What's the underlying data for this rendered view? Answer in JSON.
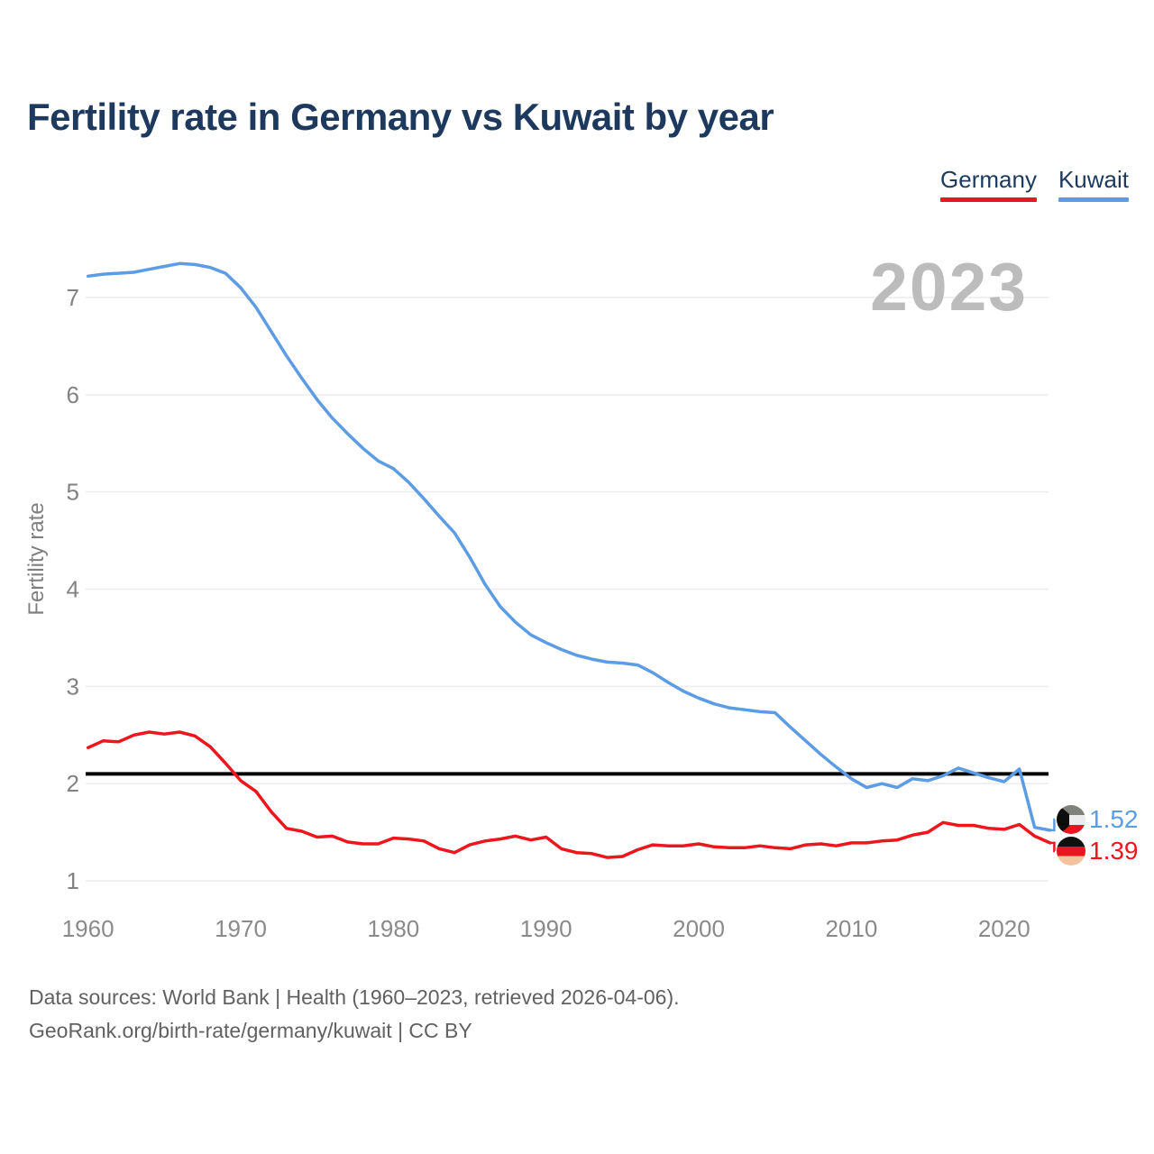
{
  "title": "Fertility rate in Germany vs Kuwait by year",
  "legend": {
    "items": [
      {
        "label": "Germany",
        "color": "#ee161d"
      },
      {
        "label": "Kuwait",
        "color": "#5b9ce4"
      }
    ]
  },
  "year_badge": "2023",
  "footer": {
    "line1": "Data sources: World Bank | Health (1960–2023, retrieved 2026-04-06).",
    "line2": "GeoRank.org/birth-rate/germany/kuwait | CC BY"
  },
  "chart_data": {
    "type": "line",
    "title": "Fertility rate in Germany vs Kuwait by year",
    "xlabel": "",
    "ylabel": "Fertility rate",
    "xlim": [
      1960,
      2023
    ],
    "ylim": [
      1,
      7.56
    ],
    "yticks": [
      1,
      2,
      3,
      4,
      5,
      6,
      7
    ],
    "xticks": [
      1960,
      1970,
      1980,
      1990,
      2000,
      2010,
      2020
    ],
    "grid": "horizontal",
    "legend_position": "top-right",
    "reference_line": {
      "value": 2.1,
      "color": "#000000"
    },
    "x": [
      1960,
      1961,
      1962,
      1963,
      1964,
      1965,
      1966,
      1967,
      1968,
      1969,
      1970,
      1971,
      1972,
      1973,
      1974,
      1975,
      1976,
      1977,
      1978,
      1979,
      1980,
      1981,
      1982,
      1983,
      1984,
      1985,
      1986,
      1987,
      1988,
      1989,
      1990,
      1991,
      1992,
      1993,
      1994,
      1995,
      1996,
      1997,
      1998,
      1999,
      2000,
      2001,
      2002,
      2003,
      2004,
      2005,
      2006,
      2007,
      2008,
      2009,
      2010,
      2011,
      2012,
      2013,
      2014,
      2015,
      2016,
      2017,
      2018,
      2019,
      2020,
      2021,
      2022,
      2023
    ],
    "series": [
      {
        "name": "Germany",
        "color": "#ee161d",
        "end_label": "1.39",
        "flag": "germany",
        "values": [
          2.37,
          2.44,
          2.43,
          2.5,
          2.53,
          2.51,
          2.53,
          2.49,
          2.38,
          2.21,
          2.03,
          1.92,
          1.71,
          1.54,
          1.51,
          1.45,
          1.46,
          1.4,
          1.38,
          1.38,
          1.44,
          1.43,
          1.41,
          1.33,
          1.29,
          1.37,
          1.41,
          1.43,
          1.46,
          1.42,
          1.45,
          1.33,
          1.29,
          1.28,
          1.24,
          1.25,
          1.32,
          1.37,
          1.36,
          1.36,
          1.38,
          1.35,
          1.34,
          1.34,
          1.36,
          1.34,
          1.33,
          1.37,
          1.38,
          1.36,
          1.39,
          1.39,
          1.41,
          1.42,
          1.47,
          1.5,
          1.6,
          1.57,
          1.57,
          1.54,
          1.53,
          1.58,
          1.46,
          1.39
        ]
      },
      {
        "name": "Kuwait",
        "color": "#5b9ce4",
        "end_label": "1.52",
        "flag": "kuwait",
        "values": [
          7.22,
          7.24,
          7.25,
          7.26,
          7.29,
          7.32,
          7.35,
          7.34,
          7.31,
          7.25,
          7.1,
          6.9,
          6.65,
          6.4,
          6.17,
          5.95,
          5.76,
          5.6,
          5.45,
          5.32,
          5.24,
          5.1,
          4.93,
          4.75,
          4.58,
          4.33,
          4.05,
          3.82,
          3.66,
          3.53,
          3.45,
          3.38,
          3.32,
          3.28,
          3.25,
          3.24,
          3.22,
          3.14,
          3.04,
          2.95,
          2.88,
          2.82,
          2.78,
          2.76,
          2.74,
          2.73,
          2.58,
          2.44,
          2.3,
          2.17,
          2.05,
          1.96,
          2.0,
          1.96,
          2.05,
          2.03,
          2.08,
          2.16,
          2.11,
          2.06,
          2.02,
          2.15,
          1.55,
          1.52
        ]
      }
    ]
  }
}
